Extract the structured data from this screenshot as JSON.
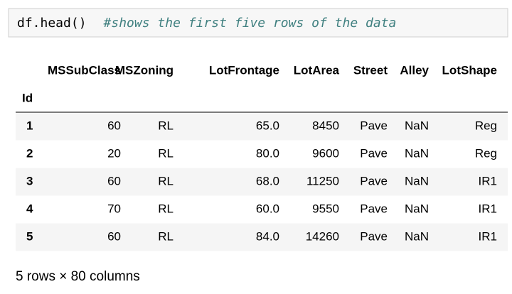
{
  "code": {
    "text": "df.head()",
    "comment": "#shows the first five rows of the data"
  },
  "table": {
    "columns": [
      "MSSubClass",
      "MSZoning",
      "LotFrontage",
      "LotArea",
      "Street",
      "Alley",
      "LotShape"
    ],
    "index_name": "Id",
    "index": [
      "1",
      "2",
      "3",
      "4",
      "5"
    ],
    "rows": [
      [
        "60",
        "RL",
        "65.0",
        "8450",
        "Pave",
        "NaN",
        "Reg"
      ],
      [
        "20",
        "RL",
        "80.0",
        "9600",
        "Pave",
        "NaN",
        "Reg"
      ],
      [
        "60",
        "RL",
        "68.0",
        "11250",
        "Pave",
        "NaN",
        "IR1"
      ],
      [
        "70",
        "RL",
        "60.0",
        "9550",
        "Pave",
        "NaN",
        "IR1"
      ],
      [
        "60",
        "RL",
        "84.0",
        "14260",
        "Pave",
        "NaN",
        "IR1"
      ]
    ]
  },
  "footer": "5 rows × 80 columns"
}
